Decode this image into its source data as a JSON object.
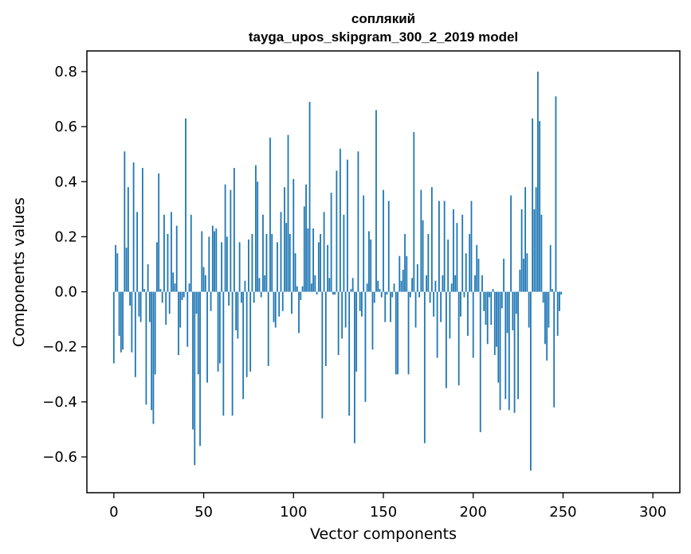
{
  "chart_data": {
    "type": "bar",
    "title_line1": "соплякий",
    "title_line2": "tayga_upos_skipgram_300_2_2019 model",
    "xlabel": "Vector components",
    "ylabel": "Components values",
    "xlim": [
      -15,
      315
    ],
    "ylim": [
      -0.73,
      0.875
    ],
    "xticks": [
      0,
      50,
      100,
      150,
      200,
      250,
      300
    ],
    "xtick_labels": [
      "0",
      "50",
      "100",
      "150",
      "200",
      "250",
      "300"
    ],
    "yticks": [
      -0.6,
      -0.4,
      -0.2,
      0.0,
      0.2,
      0.4,
      0.6,
      0.8
    ],
    "ytick_labels": [
      "−0.6",
      "−0.4",
      "−0.2",
      "0.0",
      "0.2",
      "0.4",
      "0.6",
      "0.8"
    ],
    "bar_color": "#1f77b4",
    "values": [
      -0.26,
      0.17,
      0.14,
      -0.16,
      -0.22,
      -0.21,
      0.51,
      0.16,
      0.38,
      -0.05,
      -0.22,
      0.47,
      -0.31,
      0.29,
      -0.09,
      -0.11,
      0.45,
      0.01,
      -0.41,
      0.1,
      -0.11,
      -0.43,
      -0.48,
      -0.3,
      0.18,
      0.43,
      0.01,
      -0.04,
      0.28,
      -0.12,
      0.21,
      -0.08,
      0.29,
      0.07,
      0.03,
      0.24,
      -0.23,
      -0.13,
      -0.03,
      -0.02,
      0.63,
      -0.2,
      0.03,
      0.28,
      -0.5,
      -0.63,
      -0.08,
      -0.3,
      -0.56,
      0.22,
      0.09,
      0.06,
      -0.33,
      0.2,
      -0.07,
      0.24,
      0.22,
      0.23,
      -0.29,
      -0.26,
      0.18,
      -0.45,
      0.39,
      0.2,
      -0.05,
      0.37,
      -0.45,
      0.45,
      -0.14,
      -0.17,
      0.18,
      -0.04,
      -0.39,
      0.04,
      -0.31,
      0.19,
      -0.29,
      0.21,
      -0.04,
      0.46,
      0.4,
      0.05,
      -0.02,
      0.28,
      0.06,
      0.21,
      -0.27,
      0.56,
      0.21,
      -0.11,
      -0.13,
      0.18,
      -0.09,
      0.29,
      -0.07,
      0.38,
      0.25,
      0.57,
      0.21,
      -0.08,
      0.41,
      0.14,
      0.02,
      -0.15,
      -0.03,
      0.02,
      0.31,
      0.39,
      0.23,
      0.69,
      0.03,
      0.23,
      0.06,
      -0.01,
      0.18,
      0.21,
      -0.46,
      0.29,
      -0.27,
      0.17,
      0.05,
      0.36,
      -0.01,
      -0.01,
      0.44,
      -0.23,
      0.52,
      -0.17,
      0.28,
      -0.13,
      0.48,
      -0.45,
      0.01,
      0.05,
      -0.55,
      -0.29,
      0.51,
      -0.07,
      -0.09,
      0.35,
      -0.4,
      0.03,
      0.22,
      0.19,
      -0.21,
      -0.04,
      0.66,
      0.04,
      0.01,
      -0.02,
      0.37,
      -0.11,
      -0.01,
      0.33,
      -0.11,
      -0.02,
      0.03,
      -0.3,
      -0.3,
      0.13,
      0.04,
      0.08,
      0.21,
      0.13,
      -0.3,
      -0.02,
      0.05,
      0.58,
      -0.13,
      0.1,
      -0.02,
      0.37,
      0.26,
      -0.55,
      0.06,
      0.21,
      -0.04,
      0.38,
      -0.09,
      0.04,
      -0.24,
      0.33,
      -0.11,
      0.06,
      0.33,
      -0.35,
      0.19,
      -0.17,
      0.03,
      0.3,
      0.06,
      0.25,
      -0.34,
      -0.09,
      0.28,
      -0.02,
      0.14,
      -0.16,
      0.21,
      0.33,
      -0.24,
      0.06,
      0.17,
      0.12,
      -0.51,
      0.06,
      -0.07,
      -0.12,
      -0.19,
      -0.02,
      -0.12,
      0.01,
      -0.23,
      -0.2,
      -0.33,
      -0.43,
      -0.06,
      0.12,
      -0.39,
      -0.15,
      -0.43,
      0.35,
      -0.14,
      -0.44,
      -0.08,
      -0.39,
      0.08,
      0.3,
      0.12,
      0.38,
      0.14,
      -0.13,
      -0.65,
      0.63,
      0.3,
      0.38,
      0.8,
      0.62,
      0.28,
      -0.04,
      -0.19,
      -0.25,
      -0.13,
      0.17,
      0.01,
      -0.42,
      0.71,
      -0.16,
      -0.07,
      -0.01
    ]
  }
}
